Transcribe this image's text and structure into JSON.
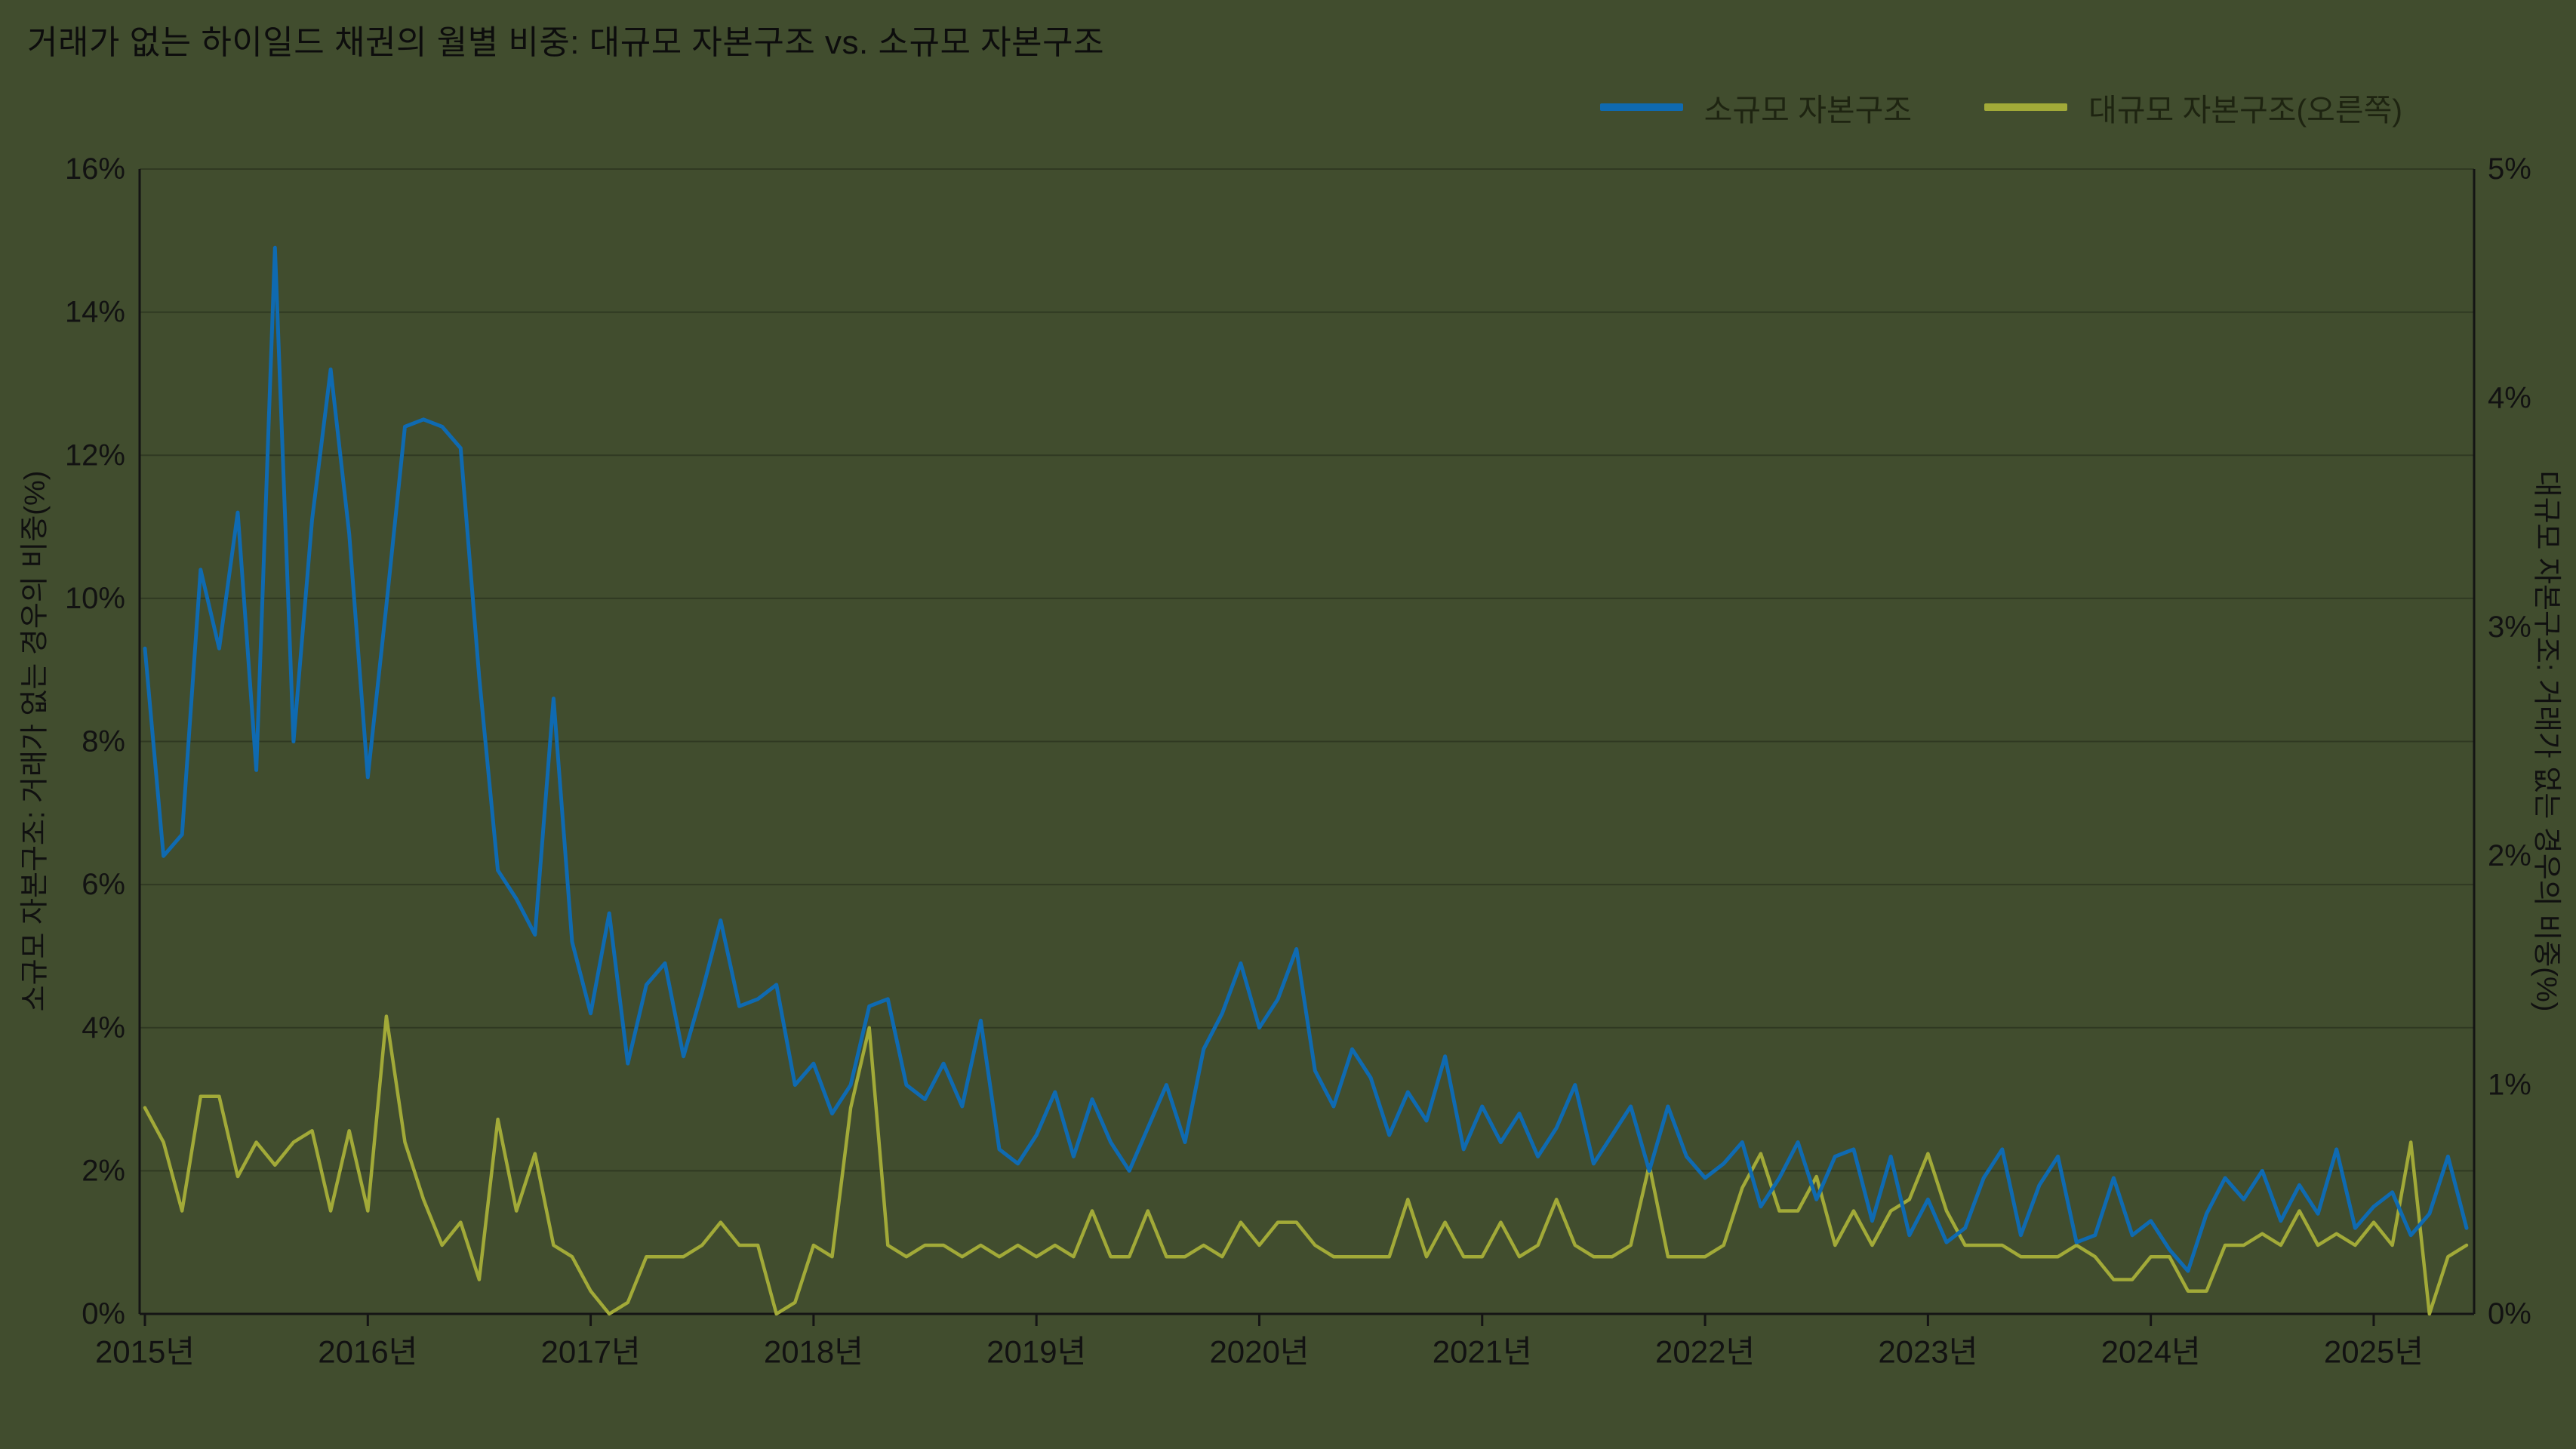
{
  "title": "거래가 없는 하이일드 채권의 월별 비중: 대규모 자본구조 vs. 소규모 자본구조",
  "legend": [
    {
      "label": "소규모 자본구조",
      "color": "#0f6ab1"
    },
    {
      "label": "대규모 자본구조(오른쪽)",
      "color": "#a2aa38"
    }
  ],
  "left_axis": {
    "title": "소규모 자본구조: 거래가 없는 경우의 비중(%)",
    "min": 0,
    "max": 16,
    "ticks": [
      {
        "v": 0,
        "label": "0%"
      },
      {
        "v": 2,
        "label": "2%"
      },
      {
        "v": 4,
        "label": "4%"
      },
      {
        "v": 6,
        "label": "6%"
      },
      {
        "v": 8,
        "label": "8%"
      },
      {
        "v": 10,
        "label": "10%"
      },
      {
        "v": 12,
        "label": "12%"
      },
      {
        "v": 14,
        "label": "14%"
      },
      {
        "v": 16,
        "label": "16%"
      }
    ]
  },
  "right_axis": {
    "title": "대규모 자본구조: 거래가 없는 경우의 비중(%)",
    "min": 0,
    "max": 5,
    "ticks": [
      {
        "v": 0,
        "label": "0%"
      },
      {
        "v": 1,
        "label": "1%"
      },
      {
        "v": 2,
        "label": "2%"
      },
      {
        "v": 3,
        "label": "3%"
      },
      {
        "v": 4,
        "label": "4%"
      },
      {
        "v": 5,
        "label": "5%"
      }
    ]
  },
  "x_axis": {
    "ticks": [
      "2015년",
      "2016년",
      "2017년",
      "2018년",
      "2019년",
      "2020년",
      "2021년",
      "2022년",
      "2023년",
      "2024년",
      "2025년"
    ],
    "months_per_tick": 12
  },
  "chart_data": {
    "type": "line",
    "x_unit": "month",
    "x_range": [
      "2015-01",
      "2025-06"
    ],
    "left_ylim": [
      0,
      16
    ],
    "right_ylim": [
      0,
      5
    ],
    "grid": "horizontal",
    "legend_position": "top-right",
    "series": [
      {
        "name": "소규모 자본구조",
        "axis": "left",
        "color": "#0f6ab1",
        "line_width": 5,
        "values": [
          9.3,
          6.4,
          6.7,
          10.4,
          9.3,
          11.2,
          7.6,
          14.9,
          8.0,
          11.1,
          13.2,
          10.9,
          7.5,
          9.9,
          12.4,
          12.5,
          12.4,
          12.1,
          8.9,
          6.2,
          5.8,
          5.3,
          8.6,
          5.2,
          4.2,
          5.6,
          3.5,
          4.6,
          4.9,
          3.6,
          4.5,
          5.5,
          4.3,
          4.4,
          4.6,
          3.2,
          3.5,
          2.8,
          3.2,
          4.3,
          4.4,
          3.2,
          3.0,
          3.5,
          2.9,
          4.1,
          2.3,
          2.1,
          2.5,
          3.1,
          2.2,
          3.0,
          2.4,
          2.0,
          2.6,
          3.2,
          2.4,
          3.7,
          4.2,
          4.9,
          4.0,
          4.4,
          5.1,
          3.4,
          2.9,
          3.7,
          3.3,
          2.5,
          3.1,
          2.7,
          3.6,
          2.3,
          2.9,
          2.4,
          2.8,
          2.2,
          2.6,
          3.2,
          2.1,
          2.5,
          2.9,
          2.0,
          2.9,
          2.2,
          1.9,
          2.1,
          2.4,
          1.5,
          1.9,
          2.4,
          1.6,
          2.2,
          2.3,
          1.3,
          2.2,
          1.1,
          1.6,
          1.0,
          1.2,
          1.9,
          2.3,
          1.1,
          1.8,
          2.2,
          1.0,
          1.1,
          1.9,
          1.1,
          1.3,
          0.9,
          0.6,
          1.4,
          1.9,
          1.6,
          2.0,
          1.3,
          1.8,
          1.4,
          2.3,
          1.2,
          1.5,
          1.7,
          1.1,
          1.4,
          2.2,
          1.2
        ]
      },
      {
        "name": "대규모 자본구조(오른쪽)",
        "axis": "right",
        "color": "#a2aa38",
        "line_width": 4.5,
        "values": [
          0.9,
          0.75,
          0.45,
          0.95,
          0.95,
          0.6,
          0.75,
          0.65,
          0.75,
          0.8,
          0.45,
          0.8,
          0.45,
          1.3,
          0.75,
          0.5,
          0.3,
          0.4,
          0.15,
          0.85,
          0.45,
          0.7,
          0.3,
          0.25,
          0.1,
          0.0,
          0.05,
          0.25,
          0.25,
          0.25,
          0.3,
          0.4,
          0.3,
          0.3,
          0.0,
          0.05,
          0.3,
          0.25,
          0.9,
          1.25,
          0.3,
          0.25,
          0.3,
          0.3,
          0.25,
          0.3,
          0.25,
          0.3,
          0.25,
          0.3,
          0.25,
          0.45,
          0.25,
          0.25,
          0.45,
          0.25,
          0.25,
          0.3,
          0.25,
          0.4,
          0.3,
          0.4,
          0.4,
          0.3,
          0.25,
          0.25,
          0.25,
          0.25,
          0.5,
          0.25,
          0.4,
          0.25,
          0.25,
          0.4,
          0.25,
          0.3,
          0.5,
          0.3,
          0.25,
          0.25,
          0.3,
          0.65,
          0.25,
          0.25,
          0.25,
          0.3,
          0.55,
          0.7,
          0.45,
          0.45,
          0.6,
          0.3,
          0.45,
          0.3,
          0.45,
          0.5,
          0.7,
          0.45,
          0.3,
          0.3,
          0.3,
          0.25,
          0.25,
          0.25,
          0.3,
          0.25,
          0.15,
          0.15,
          0.25,
          0.25,
          0.1,
          0.1,
          0.3,
          0.3,
          0.35,
          0.3,
          0.45,
          0.3,
          0.35,
          0.3,
          0.4,
          0.3,
          0.75,
          0.0,
          0.25,
          0.3
        ]
      }
    ],
    "colors": {
      "background": "#414d2e",
      "grid": "rgba(0,0,0,0.25)",
      "axis": "#141414",
      "text": "#121212"
    }
  }
}
